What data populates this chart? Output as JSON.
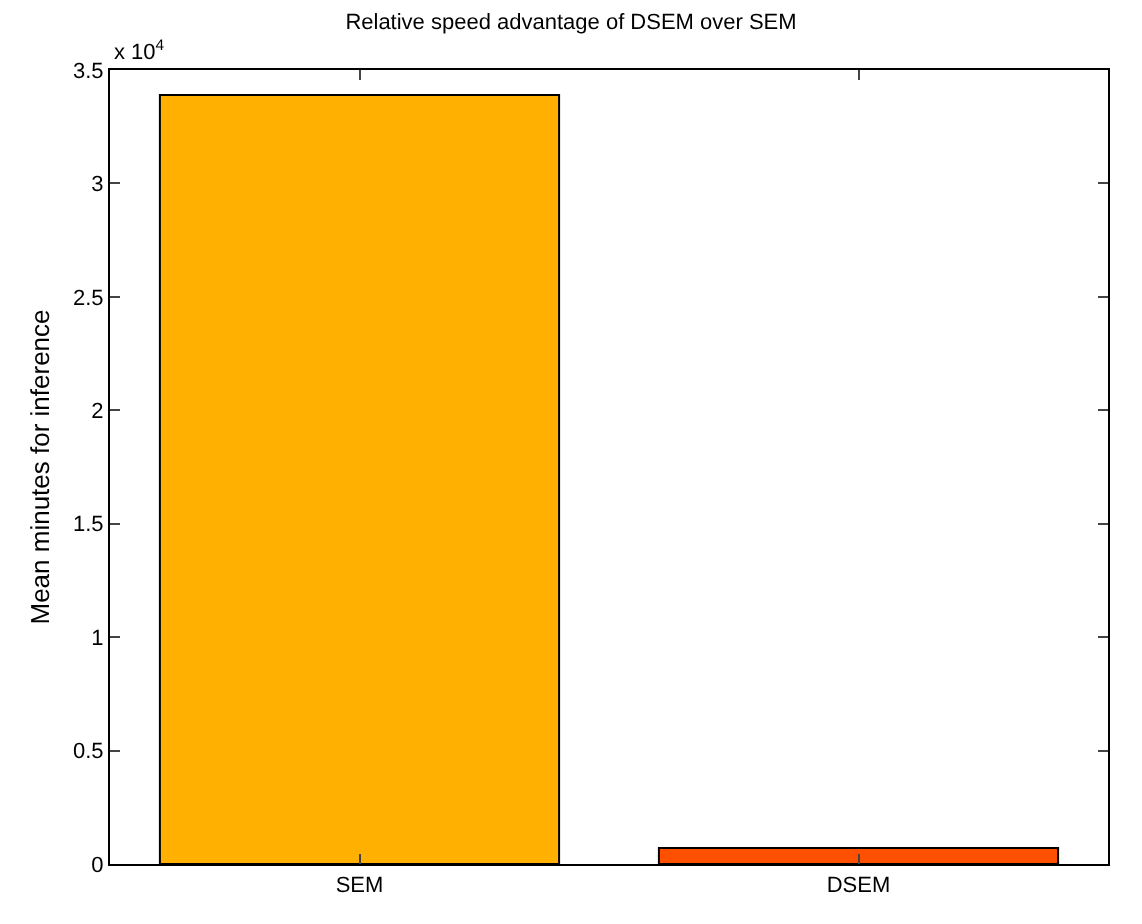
{
  "chart_data": {
    "type": "bar",
    "title": "Relative speed advantage of DSEM over SEM",
    "ylabel": "Mean minutes for inference",
    "annotations": [
      "x 10$^{4}$"
    ],
    "categories": [
      "SEM",
      "DSEM"
    ],
    "values": [
      3.39,
      0.07
    ],
    "colors": [
      "#ffb000",
      "#ff5000"
    ],
    "ylim": [
      0,
      3.5
    ],
    "yticks": [
      0,
      0.5,
      1,
      1.5,
      2,
      2.5,
      3,
      3.5
    ]
  }
}
